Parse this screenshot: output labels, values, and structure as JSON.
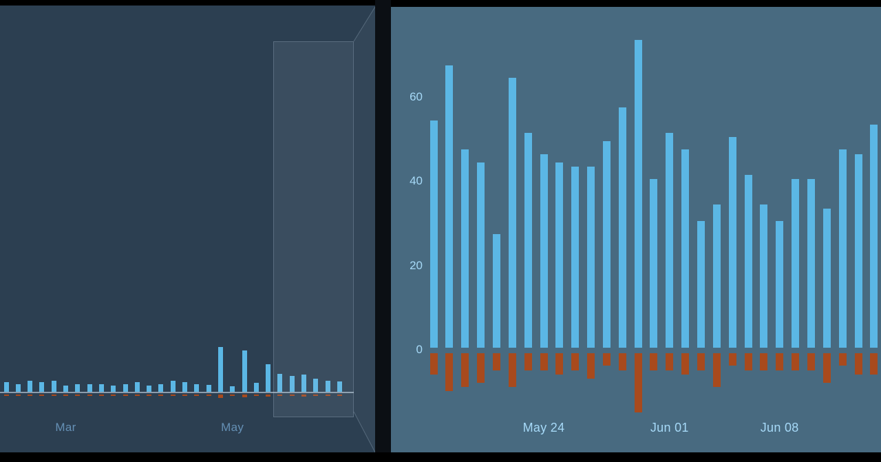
{
  "colors": {
    "overview_bg": "#2c3f51",
    "detail_bg": "#486a80",
    "positive_bar": "#5bb7e5",
    "negative_bar": "#a84a1d",
    "selection_fill": "rgba(188,209,228,0.10)",
    "selection_border": "rgba(188,209,228,0.25)",
    "lens_fill": "rgba(188,209,228,0.05)",
    "lens_edge": "rgba(188,209,228,0.28)",
    "axis_line": "rgba(203,219,233,0.60)",
    "overview_label": "#6590b5",
    "detail_label": "#a6d9f7",
    "divider": "#0b0f14",
    "frame": "#000000"
  },
  "chart_data": [
    {
      "id": "overview",
      "type": "bar",
      "title": "",
      "grid": false,
      "legend": false,
      "xticks": [
        {
          "index": 5,
          "label": "Mar"
        },
        {
          "index": 19,
          "label": "May"
        }
      ],
      "selection": {
        "from_index": 22,
        "to_index": 28
      },
      "series": [
        {
          "name": "positive",
          "values": [
            13,
            11,
            15,
            13,
            15,
            9,
            11,
            11,
            11,
            9,
            11,
            13,
            9,
            11,
            15,
            13,
            11,
            10,
            62,
            8,
            57,
            12,
            38,
            25,
            22,
            24,
            18,
            15,
            14
          ]
        },
        {
          "name": "negative",
          "values": [
            -2,
            -2,
            -2,
            -2,
            -2,
            -2,
            -2,
            -2,
            -2,
            -2,
            -2,
            -2,
            -2,
            -2,
            -2,
            -2,
            -2,
            -2,
            -5,
            -2,
            -4,
            -2,
            -3,
            -2,
            -2,
            -3,
            -2,
            -2,
            -2
          ]
        }
      ]
    },
    {
      "id": "detail",
      "type": "bar",
      "title": "",
      "grid": false,
      "legend": false,
      "ylim": [
        -15,
        75
      ],
      "yticks": [
        0,
        20,
        40,
        60
      ],
      "xticks": [
        {
          "index": 7,
          "label": "May 24"
        },
        {
          "index": 15,
          "label": "Jun 01"
        },
        {
          "index": 22,
          "label": "Jun 08"
        }
      ],
      "series": [
        {
          "name": "positive",
          "values": [
            54,
            67,
            47,
            44,
            27,
            64,
            51,
            46,
            44,
            43,
            43,
            49,
            57,
            73,
            40,
            51,
            47,
            30,
            34,
            50,
            41,
            34,
            30,
            40,
            40,
            33,
            47,
            46,
            53
          ]
        },
        {
          "name": "negative",
          "values": [
            -5,
            -9,
            -8,
            -7,
            -4,
            -8,
            -4,
            -4,
            -5,
            -4,
            -6,
            -3,
            -4,
            -14,
            -4,
            -4,
            -5,
            -4,
            -8,
            -3,
            -4,
            -4,
            -4,
            -4,
            -4,
            -7,
            -3,
            -5,
            -5
          ]
        }
      ]
    }
  ]
}
